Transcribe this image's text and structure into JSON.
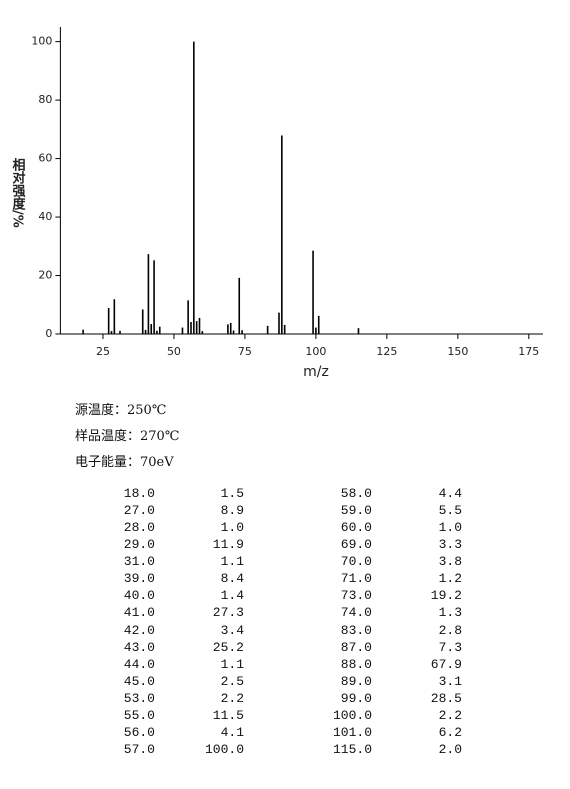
{
  "chart_data": {
    "type": "bar",
    "x_label": "m/z",
    "y_label": "相对强度/%",
    "x": [
      18,
      27,
      28,
      29,
      31,
      39,
      40,
      41,
      42,
      43,
      44,
      45,
      53,
      55,
      56,
      57,
      58,
      59,
      60,
      69,
      70,
      71,
      73,
      74,
      83,
      87,
      88,
      89,
      99,
      100,
      101,
      115
    ],
    "values": [
      1.5,
      8.9,
      1.0,
      11.9,
      1.1,
      8.4,
      1.4,
      27.3,
      3.4,
      25.2,
      1.1,
      2.5,
      2.2,
      11.5,
      4.1,
      100.0,
      4.4,
      5.5,
      1.0,
      3.3,
      3.8,
      1.2,
      19.2,
      1.3,
      2.8,
      7.3,
      67.9,
      3.1,
      28.5,
      2.2,
      6.2,
      2.0
    ],
    "color": "#000000",
    "xlim": [
      10,
      180
    ],
    "xticks": [
      25,
      50,
      75,
      100,
      125,
      150,
      175
    ],
    "ylim": [
      0,
      105
    ],
    "yticks": [
      0,
      20,
      40,
      60,
      80,
      100
    ]
  },
  "info": [
    "源温度：250℃",
    "样品温度：270℃",
    "电子能量：70eV"
  ],
  "table": {
    "rows": [
      [
        "18.0",
        "1.5",
        "58.0",
        "4.4"
      ],
      [
        "27.0",
        "8.9",
        "59.0",
        "5.5"
      ],
      [
        "28.0",
        "1.0",
        "60.0",
        "1.0"
      ],
      [
        "29.0",
        "11.9",
        "69.0",
        "3.3"
      ],
      [
        "31.0",
        "1.1",
        "70.0",
        "3.8"
      ],
      [
        "39.0",
        "8.4",
        "71.0",
        "1.2"
      ],
      [
        "40.0",
        "1.4",
        "73.0",
        "19.2"
      ],
      [
        "41.0",
        "27.3",
        "74.0",
        "1.3"
      ],
      [
        "42.0",
        "3.4",
        "83.0",
        "2.8"
      ],
      [
        "43.0",
        "25.2",
        "87.0",
        "7.3"
      ],
      [
        "44.0",
        "1.1",
        "88.0",
        "67.9"
      ],
      [
        "45.0",
        "2.5",
        "89.0",
        "3.1"
      ],
      [
        "53.0",
        "2.2",
        "99.0",
        "28.5"
      ],
      [
        "55.0",
        "11.5",
        "100.0",
        "2.2"
      ],
      [
        "56.0",
        "4.1",
        "101.0",
        "6.2"
      ],
      [
        "57.0",
        "100.0",
        "115.0",
        "2.0"
      ]
    ]
  }
}
